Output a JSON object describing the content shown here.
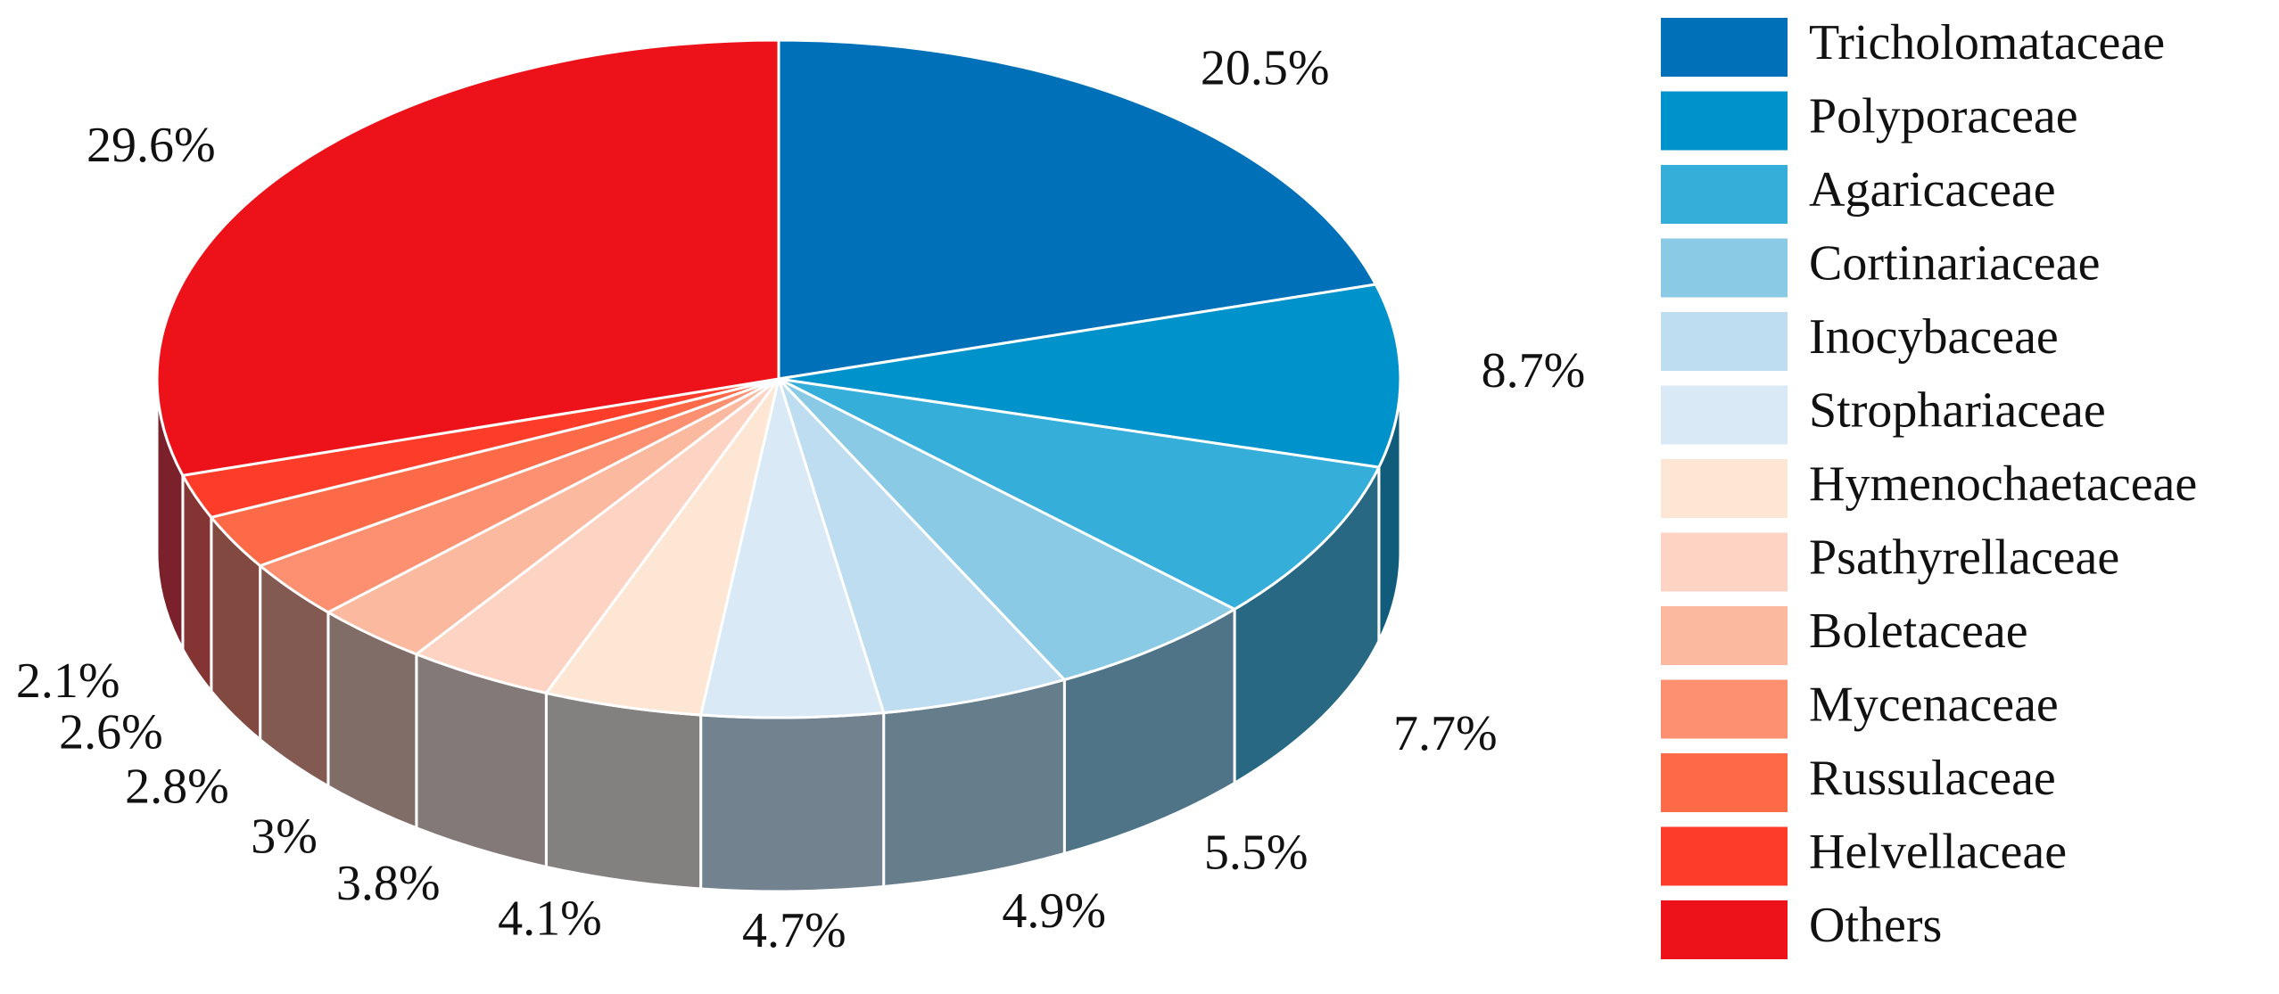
{
  "chart_data": {
    "type": "pie",
    "style": "3d",
    "slices": [
      {
        "label": "Tricholomataceae",
        "value": 20.5,
        "text": "20.5%",
        "color": "#0070B8"
      },
      {
        "label": "Polyporaceae",
        "value": 8.7,
        "text": "8.7%",
        "color": "#0093CB"
      },
      {
        "label": "Agaricaceae",
        "value": 7.7,
        "text": "7.7%",
        "color": "#35AED9"
      },
      {
        "label": "Cortinariaceae",
        "value": 5.5,
        "text": "5.5%",
        "color": "#8ACAE5"
      },
      {
        "label": "Inocybaceae",
        "value": 4.9,
        "text": "4.9%",
        "color": "#BFDDF0"
      },
      {
        "label": "Strophariaceae",
        "value": 4.7,
        "text": "4.7%",
        "color": "#DAE9F6"
      },
      {
        "label": "Hymenochaetaceae",
        "value": 4.1,
        "text": "4.1%",
        "color": "#FDE6D4"
      },
      {
        "label": "Psathyrellaceae",
        "value": 3.8,
        "text": "3.8%",
        "color": "#FDD4C4"
      },
      {
        "label": "Boletaceae",
        "value": 3.0,
        "text": "3%",
        "color": "#FBB9A0"
      },
      {
        "label": "Mycenaceae",
        "value": 2.8,
        "text": "2.8%",
        "color": "#FC9070"
      },
      {
        "label": "Russulaceae",
        "value": 2.6,
        "text": "2.6%",
        "color": "#FD6A48"
      },
      {
        "label": "Helvellaceae",
        "value": 2.1,
        "text": "2.1%",
        "color": "#FE3C2A"
      },
      {
        "label": "Others",
        "value": 29.6,
        "text": "29.6%",
        "color": "#ED1219"
      }
    ],
    "legend_position": "right",
    "start": "top, clockwise"
  }
}
